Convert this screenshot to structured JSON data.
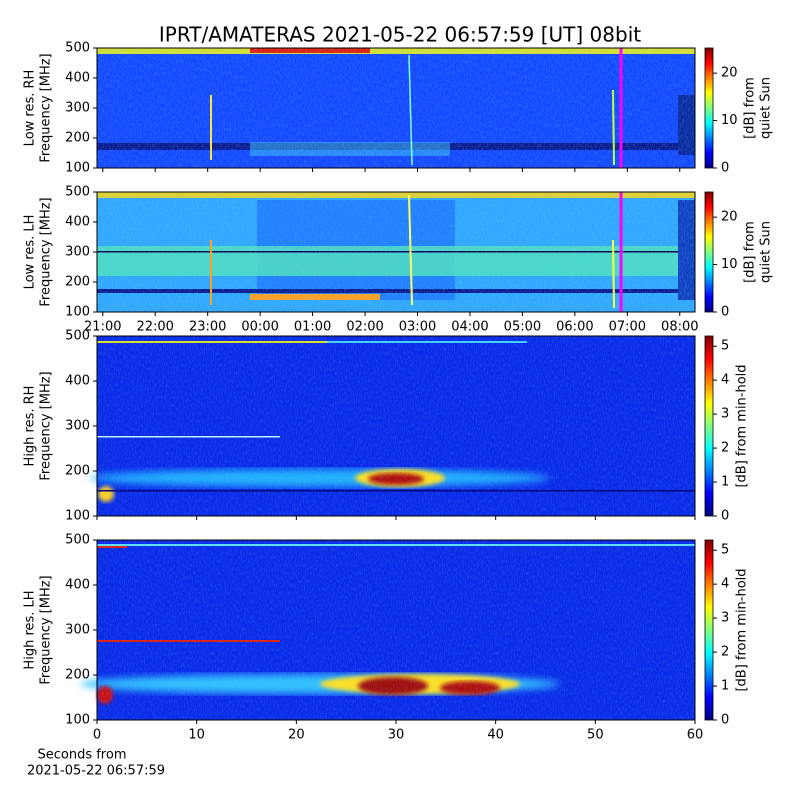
{
  "title": "IPRT/AMATERAS 2021-05-22 06:57:59 [UT]   08bit",
  "chart_data": [
    {
      "type": "heatmap",
      "ylabel": [
        "Low res. RH",
        "Frequency [MHz]"
      ],
      "xlim": [
        20.89,
        32.29
      ],
      "ylim": [
        100,
        500
      ],
      "yticks": [
        100,
        200,
        300,
        400,
        500
      ],
      "colormap": "jet",
      "clim": [
        0,
        25.3
      ],
      "cticks": [
        0,
        10,
        20
      ],
      "colorbar_label": [
        "[dB] from",
        "quiet Sun"
      ],
      "marker": {
        "x": 30.88,
        "color": "#ff00ff"
      }
    },
    {
      "type": "heatmap",
      "ylabel": [
        "Low res. LH",
        "Frequency [MHz]"
      ],
      "xlim": [
        20.89,
        32.29
      ],
      "ylim": [
        100,
        500
      ],
      "yticks": [
        100,
        200,
        300,
        400,
        500
      ],
      "xticks": [
        {
          "value": 21,
          "label": "21:00"
        },
        {
          "value": 22,
          "label": "22:00"
        },
        {
          "value": 23,
          "label": "23:00"
        },
        {
          "value": 24,
          "label": "00:00"
        },
        {
          "value": 25,
          "label": "01:00"
        },
        {
          "value": 26,
          "label": "02:00"
        },
        {
          "value": 27,
          "label": "03:00"
        },
        {
          "value": 28,
          "label": "04:00"
        },
        {
          "value": 29,
          "label": "05:00"
        },
        {
          "value": 30,
          "label": "06:00"
        },
        {
          "value": 31,
          "label": "07:00"
        },
        {
          "value": 32,
          "label": "08:00"
        }
      ],
      "colormap": "jet",
      "clim": [
        0,
        25.3
      ],
      "cticks": [
        0,
        10,
        20
      ],
      "colorbar_label": [
        "[dB] from",
        "quiet Sun"
      ],
      "marker": {
        "x": 30.88,
        "color": "#ff00ff"
      }
    },
    {
      "type": "heatmap",
      "ylabel": [
        "High res. RH",
        "Frequency [MHz]"
      ],
      "xlim": [
        0,
        60
      ],
      "ylim": [
        100,
        500
      ],
      "yticks": [
        100,
        200,
        300,
        400,
        500
      ],
      "colormap": "jet",
      "clim": [
        0,
        5.3
      ],
      "cticks": [
        0,
        1,
        2,
        3,
        4,
        5
      ],
      "colorbar_label": [
        "[dB] from min-hold"
      ]
    },
    {
      "type": "heatmap",
      "ylabel": [
        "High res. LH",
        "Frequency [MHz]"
      ],
      "xlim": [
        0,
        60
      ],
      "ylim": [
        100,
        500
      ],
      "yticks": [
        100,
        200,
        300,
        400,
        500
      ],
      "xticks": [
        0,
        10,
        20,
        30,
        40,
        50,
        60
      ],
      "xlabel": [
        "Seconds from",
        "2021-05-22 06:57:59"
      ],
      "colormap": "jet",
      "clim": [
        0,
        5.3
      ],
      "cticks": [
        0,
        1,
        2,
        3,
        4,
        5
      ],
      "colorbar_label": [
        "[dB] from min-hold"
      ]
    }
  ]
}
